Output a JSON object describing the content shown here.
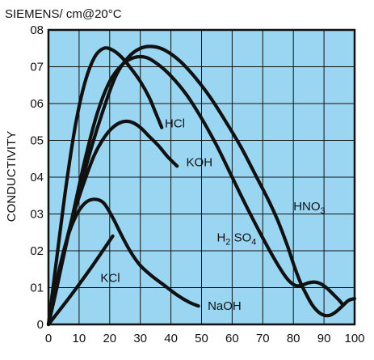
{
  "chart_data": {
    "type": "line",
    "title": "SIEMENS/ cm@20°C",
    "xlabel": "",
    "ylabel": "CONDUCTIVITY",
    "xlim": [
      0,
      100
    ],
    "ylim": [
      0,
      8
    ],
    "x_ticks": [
      "0",
      "10",
      "20",
      "30",
      "40",
      "50",
      "60",
      "70",
      "80",
      "90",
      "100"
    ],
    "y_ticks": [
      "0",
      "01",
      "02",
      "03",
      "04",
      "05",
      "06",
      "07",
      "08"
    ],
    "grid": true,
    "background_color": "#9ad6f2",
    "line_color": "#111111",
    "series": [
      {
        "name": "HCl",
        "label_parts": [
          [
            "HCl",
            "n"
          ]
        ],
        "label_at": [
          38,
          5.35
        ],
        "points": [
          [
            0,
            0
          ],
          [
            3,
            2.0
          ],
          [
            6,
            3.9
          ],
          [
            9,
            5.5
          ],
          [
            12,
            6.6
          ],
          [
            15,
            7.25
          ],
          [
            18,
            7.5
          ],
          [
            21,
            7.45
          ],
          [
            24,
            7.25
          ],
          [
            27,
            6.95
          ],
          [
            30,
            6.6
          ],
          [
            33,
            6.15
          ],
          [
            35,
            5.75
          ],
          [
            37,
            5.35
          ]
        ]
      },
      {
        "name": "KOH",
        "label_parts": [
          [
            "KOH",
            "n"
          ]
        ],
        "label_at": [
          45,
          4.3
        ],
        "points": [
          [
            0,
            0
          ],
          [
            3,
            1.2
          ],
          [
            6,
            2.3
          ],
          [
            9,
            3.2
          ],
          [
            12,
            3.95
          ],
          [
            15,
            4.6
          ],
          [
            18,
            5.05
          ],
          [
            21,
            5.35
          ],
          [
            24,
            5.5
          ],
          [
            27,
            5.5
          ],
          [
            30,
            5.35
          ],
          [
            33,
            5.1
          ],
          [
            36,
            4.85
          ],
          [
            39,
            4.55
          ],
          [
            42,
            4.3
          ]
        ]
      },
      {
        "name": "H2SO4",
        "label_parts": [
          [
            "H",
            "n"
          ],
          [
            "2",
            "sub"
          ],
          [
            " SO",
            "n"
          ],
          [
            "4",
            "sub"
          ]
        ],
        "label_at": [
          55,
          2.25
        ],
        "points": [
          [
            0,
            0
          ],
          [
            4,
            1.5
          ],
          [
            8,
            3.0
          ],
          [
            12,
            4.5
          ],
          [
            16,
            5.75
          ],
          [
            20,
            6.6
          ],
          [
            24,
            7.05
          ],
          [
            28,
            7.25
          ],
          [
            32,
            7.25
          ],
          [
            36,
            7.05
          ],
          [
            40,
            6.75
          ],
          [
            45,
            6.25
          ],
          [
            50,
            5.6
          ],
          [
            55,
            4.85
          ],
          [
            60,
            4.0
          ],
          [
            65,
            3.15
          ],
          [
            70,
            2.35
          ],
          [
            74,
            1.75
          ],
          [
            77,
            1.35
          ],
          [
            79,
            1.15
          ],
          [
            81,
            1.05
          ],
          [
            83,
            1.07
          ],
          [
            85,
            1.13
          ],
          [
            87,
            1.15
          ],
          [
            89,
            1.1
          ],
          [
            91,
            0.98
          ],
          [
            93,
            0.82
          ],
          [
            95,
            0.65
          ],
          [
            96,
            0.55
          ]
        ]
      },
      {
        "name": "HNO3",
        "label_parts": [
          [
            "HNO",
            "n"
          ],
          [
            "3",
            "sub"
          ]
        ],
        "label_at": [
          80,
          3.1
        ],
        "points": [
          [
            0,
            0
          ],
          [
            3,
            1.1
          ],
          [
            6,
            2.3
          ],
          [
            10,
            3.6
          ],
          [
            14,
            4.8
          ],
          [
            18,
            5.85
          ],
          [
            22,
            6.75
          ],
          [
            26,
            7.25
          ],
          [
            30,
            7.5
          ],
          [
            34,
            7.55
          ],
          [
            38,
            7.45
          ],
          [
            43,
            7.15
          ],
          [
            48,
            6.7
          ],
          [
            53,
            6.15
          ],
          [
            58,
            5.5
          ],
          [
            63,
            4.8
          ],
          [
            68,
            4.0
          ],
          [
            72,
            3.35
          ],
          [
            75,
            2.8
          ],
          [
            78,
            2.15
          ],
          [
            80,
            1.65
          ],
          [
            82,
            1.2
          ],
          [
            84,
            0.85
          ],
          [
            86,
            0.55
          ],
          [
            88,
            0.35
          ],
          [
            90,
            0.25
          ],
          [
            92,
            0.25
          ],
          [
            94,
            0.35
          ],
          [
            96,
            0.5
          ],
          [
            98,
            0.65
          ],
          [
            100,
            0.7
          ]
        ]
      },
      {
        "name": "NaOH",
        "label_parts": [
          [
            "NaOH",
            "n"
          ]
        ],
        "label_at": [
          52,
          0.4
        ],
        "points": [
          [
            0,
            0
          ],
          [
            3,
            1.3
          ],
          [
            6,
            2.3
          ],
          [
            9,
            2.95
          ],
          [
            12,
            3.3
          ],
          [
            15,
            3.4
          ],
          [
            18,
            3.3
          ],
          [
            21,
            2.9
          ],
          [
            24,
            2.4
          ],
          [
            27,
            1.95
          ],
          [
            30,
            1.6
          ],
          [
            34,
            1.3
          ],
          [
            38,
            1.05
          ],
          [
            42,
            0.8
          ],
          [
            46,
            0.6
          ],
          [
            49,
            0.5
          ]
        ]
      },
      {
        "name": "KCl",
        "label_parts": [
          [
            "KCl",
            "n"
          ]
        ],
        "label_at": [
          17,
          1.15
        ],
        "points": [
          [
            0,
            0
          ],
          [
            7,
            0.75
          ],
          [
            14,
            1.55
          ],
          [
            21,
            2.4
          ]
        ]
      }
    ]
  }
}
